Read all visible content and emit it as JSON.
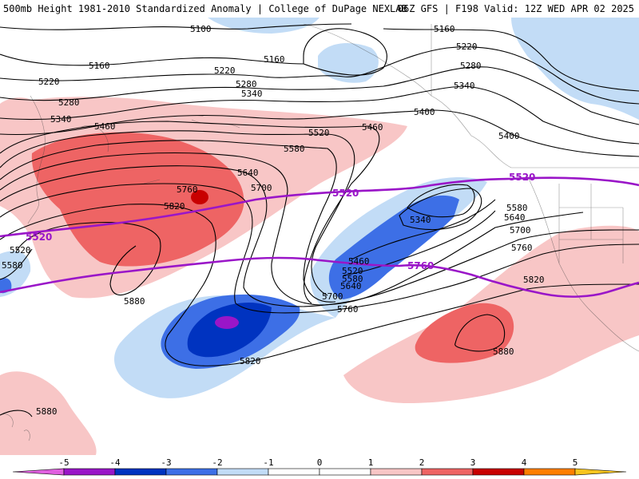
{
  "header": {
    "left": "500mb Height 1981-2010 Standardized Anomaly | College of DuPage NEXLAB",
    "right": "06Z GFS | F198 Valid: 12Z WED APR 02 2025"
  },
  "colors": {
    "anom_neg5": "#e060e0",
    "anom_neg4": "#9a16c8",
    "anom_neg3": "#0033c0",
    "anom_neg2": "#3d6fe6",
    "anom_neg1": "#c2dcf6",
    "anom_pos1": "#f8c6c6",
    "anom_pos2": "#ee6464",
    "anom_pos3": "#c80000",
    "contour": "#000000",
    "highlight_contour": "#9a16c8"
  },
  "height_labels": {
    "h5100": "5100",
    "h5160": "5160",
    "h5220": "5220",
    "h5280": "5280",
    "h5340": "5340",
    "h5400": "5400",
    "h5460": "5460",
    "h5520": "5520",
    "h5580": "5580",
    "h5640": "5640",
    "h5700": "5700",
    "h5760": "5760",
    "h5820": "5820",
    "h5880": "5880"
  },
  "colorbar": {
    "ticks": [
      "-5",
      "-4",
      "-3",
      "-2",
      "-1",
      "0",
      "1",
      "2",
      "3",
      "4",
      "5"
    ]
  }
}
